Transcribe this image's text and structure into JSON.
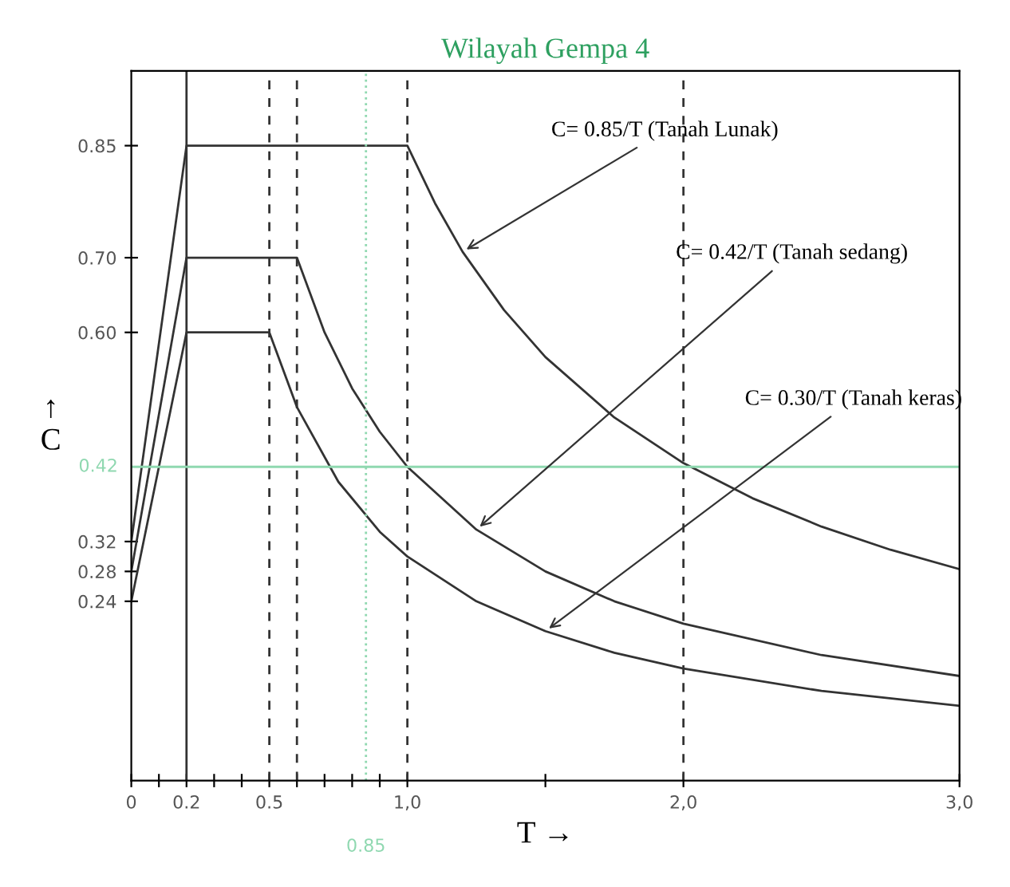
{
  "chart_data": {
    "type": "line",
    "title": "Wilayah Gempa 4",
    "xlabel": "T →",
    "ylabel": "↑\nC",
    "series": [
      {
        "color": "#333333",
        "x": [
          0,
          0.2,
          1.0,
          1.1,
          1.2,
          1.35,
          1.5,
          1.75,
          2.0,
          2.25,
          2.5,
          2.75,
          3.0
        ],
        "values": [
          0.32,
          0.85,
          0.85,
          0.773,
          0.708,
          0.63,
          0.567,
          0.486,
          0.425,
          0.378,
          0.34,
          0.309,
          0.283
        ]
      },
      {
        "color": "#333333",
        "x": [
          0,
          0.2,
          0.6,
          0.7,
          0.8,
          0.9,
          1.0,
          1.25,
          1.5,
          1.75,
          2.0,
          2.5,
          3.0
        ],
        "values": [
          0.28,
          0.7,
          0.7,
          0.6,
          0.525,
          0.467,
          0.42,
          0.336,
          0.28,
          0.24,
          0.21,
          0.168,
          0.14
        ]
      },
      {
        "color": "#333333",
        "x": [
          0,
          0.2,
          0.5,
          0.6,
          0.75,
          0.9,
          1.0,
          1.25,
          1.5,
          1.75,
          2.0,
          2.5,
          3.0
        ],
        "values": [
          0.24,
          0.6,
          0.6,
          0.5,
          0.4,
          0.333,
          0.3,
          0.24,
          0.2,
          0.171,
          0.15,
          0.12,
          0.1
        ]
      }
    ],
    "annotations": [
      {
        "text": "C= 0.85/T (Tanah Lunak)",
        "x": 1.2,
        "y": 0.708
      },
      {
        "text": "C= 0.42/T (Tanah sedang)",
        "x": 1.25,
        "y": 0.336
      },
      {
        "text": "C= 0.30/T (Tanah keras)",
        "x": 1.5,
        "y": 0.2
      }
    ],
    "ref_lines": [
      {
        "axis": "x",
        "value": 0.2,
        "line_style": "solid",
        "color": "#333333"
      },
      {
        "axis": "x",
        "value": 0.5,
        "line_style": "dashed",
        "color": "#333333"
      },
      {
        "axis": "x",
        "value": 0.6,
        "line_style": "dashed",
        "color": "#333333"
      },
      {
        "axis": "x",
        "value": 0.85,
        "line_style": "dotted",
        "color": "#8fd8b0",
        "label": "0.85"
      },
      {
        "axis": "x",
        "value": 1.0,
        "line_style": "dashed",
        "color": "#333333"
      },
      {
        "axis": "x",
        "value": 2.0,
        "line_style": "dashed",
        "color": "#333333"
      },
      {
        "axis": "y",
        "value": 0.42,
        "line_style": "solid",
        "color": "#8fd8b0",
        "label": "0.42"
      }
    ],
    "xlim": [
      0,
      3.0
    ],
    "ylim": [
      0,
      0.95
    ],
    "xticks": [
      0,
      {
        "value": 0.1,
        "label": null
      },
      {
        "value": 0.2,
        "label": "0.2"
      },
      {
        "value": 0.3,
        "label": null
      },
      {
        "value": 0.4,
        "label": null
      },
      {
        "value": 0.5,
        "label": "0.5"
      },
      {
        "value": 0.6,
        "label": null
      },
      {
        "value": 0.7,
        "label": null
      },
      {
        "value": 0.8,
        "label": null
      },
      {
        "value": 0.9,
        "label": null
      },
      {
        "value": 1.0,
        "label": "1,0"
      },
      {
        "value": 1.5,
        "label": null
      },
      {
        "value": 2.0,
        "label": "2,0"
      },
      {
        "value": 3.0,
        "label": "3,0"
      }
    ],
    "yticks": [
      {
        "value": 0.24,
        "label": "0.24"
      },
      {
        "value": 0.28,
        "label": "0.28"
      },
      {
        "value": 0.32,
        "label": "0.32"
      },
      {
        "value": 0.6,
        "label": "0.60"
      },
      {
        "value": 0.7,
        "label": "0.70"
      },
      {
        "value": 0.85,
        "label": "0.85"
      }
    ],
    "grid": false,
    "legend": false,
    "marker": "none",
    "line_style": "solid"
  }
}
